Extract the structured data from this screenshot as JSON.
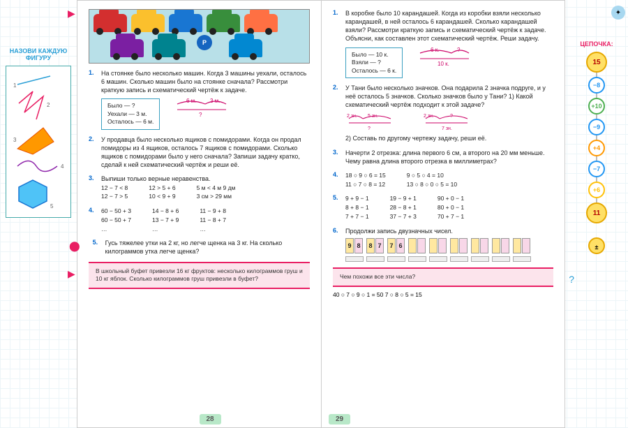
{
  "left_sidebar": {
    "title": "НАЗОВИ КАЖДУЮ ФИГУРУ",
    "shape_labels": [
      "1",
      "2",
      "3",
      "4",
      "5"
    ],
    "shape_colors": {
      "line": "#2a9fd6",
      "zigzag": "#e91e63",
      "poly": "#ff9800",
      "wave": "#8e24aa",
      "hex_fill": "#4fc3f7",
      "hex_stroke": "#1976d2"
    }
  },
  "page_left": {
    "number": "28",
    "car_colors": [
      "#d32f2f",
      "#1976d2",
      "#fbc02d",
      "#7b1fa2",
      "#388e3c",
      "#ff7043",
      "#00838f",
      "#5d4037",
      "#0288d1"
    ],
    "task1": {
      "text": "На стоянке было несколько машин. Когда 3 машины уехали, осталось 6 машин. Сколько машин было на стоянке сначала?\nРассмотри краткую запись и схематический чертёж к задаче.",
      "box": [
        "Было — ?",
        "Уехали — 3 м.",
        "Осталось — 6 м."
      ],
      "diag": {
        "a": "6 м.",
        "b": "3 м.",
        "c": "?",
        "color": "#cc0066"
      }
    },
    "task2": "У продавца было несколько ящиков с помидорами. Когда он продал помидоры из 4 ящиков, осталось 7 ящиков с помидорами. Сколько ящиков с помидорами было у него сначала? Запиши задачу кратко, сделай к ней схематический чертёж и реши её.",
    "task3": {
      "text": "Выпиши только верные неравенства.",
      "cols": [
        [
          "12 − 7 < 8",
          "12 − 7 > 5"
        ],
        [
          "12 > 5 + 6",
          "10 < 9 + 9"
        ],
        [
          "5 м < 4 м 9 дм",
          "3 см > 29 мм"
        ]
      ]
    },
    "task4": {
      "cols": [
        [
          "60 − 50 + 3",
          "60 − 50 + 7",
          "…"
        ],
        [
          "14 − 8 + 6",
          "13 − 7 + 9",
          "…"
        ],
        [
          "11 − 9 + 8",
          "11 − 8 + 7",
          "…"
        ]
      ]
    },
    "task5": "Гусь тяжелее утки на 2 кг, но легче щенка на 3 кг. На сколько килограммов утка легче щенка?",
    "pink": "В школьный буфет привезли 16 кг фруктов: несколько килограммов груш и 10 кг яблок. Сколько килограммов груш привезли в буфет?"
  },
  "page_right": {
    "number": "29",
    "task1": {
      "text": "В коробке было 10 карандашей. Когда из коробки взяли несколько карандашей, в ней осталось 6 карандашей. Сколько карандашей взяли? Рассмотри краткую запись и схематический чертёж к задаче. Объясни, как составлен этот схематический чертёж. Реши задачу.",
      "box": [
        "Было — 10 к.",
        "Взяли — ?",
        "Осталось — 6 к."
      ],
      "diag": {
        "a": "6 к.",
        "b": "?",
        "c": "10 к.",
        "color": "#cc0066"
      }
    },
    "task2": {
      "text": "У Тани было несколько значков. Она подарила 2 значка подруге, и у неё осталось 5 значков. Сколько значков было у Тани?\n1) Какой схематический чертёж подходит к этой задаче?",
      "d1": {
        "a": "2 зн.",
        "b": "5 зн.",
        "c": "?"
      },
      "d2": {
        "a": "2 зн.",
        "b": "?",
        "c": "7 зн."
      },
      "sub": "2) Составь по другому чертежу задачу, реши её."
    },
    "task3": "Начерти 2 отрезка: длина первого 6 см, а второго на 20 мм меньше. Чему равна длина второго отрезка в миллиметрах?",
    "task4": {
      "cols": [
        [
          "18 ○ 9 ○ 6 = 15",
          "11 ○ 7 ○ 8 = 12"
        ],
        [
          "9 ○ 5 ○ 4 = 10",
          "13 ○ 8 ○ 0 ○ 5 = 10"
        ]
      ]
    },
    "task5": {
      "cols": [
        [
          "9 + 9 − 1",
          "8 + 8 − 1",
          "7 + 7 − 1"
        ],
        [
          "19 − 9 + 1",
          "28 − 8 + 1",
          "37 − 7 + 3"
        ],
        [
          "90 + 0 − 1",
          "80 + 0 − 1",
          "70 + 7 − 1"
        ]
      ]
    },
    "task6": {
      "text": "Продолжи запись двузначных чисел.",
      "pairs": [
        [
          "9",
          "8"
        ],
        [
          "8",
          "7"
        ],
        [
          "7",
          "6"
        ],
        [
          "",
          ""
        ],
        [
          "",
          ""
        ],
        [
          "",
          ""
        ],
        [
          "",
          ""
        ],
        [
          "",
          ""
        ],
        [
          "",
          ""
        ]
      ]
    },
    "pink_q": "Чем похожи все эти числа?",
    "bottom": "40 ○ 7 ○ 9 ○ 1 = 50          7 ○ 8 ○ 5 = 15"
  },
  "right_sidebar": {
    "title": "ЦЕПОЧКА:",
    "chain": [
      {
        "v": "15",
        "big": true
      },
      {
        "v": "−8",
        "c": "#2196f3"
      },
      {
        "v": "+10",
        "c": "#4caf50"
      },
      {
        "v": "−9",
        "c": "#2196f3"
      },
      {
        "v": "+4",
        "c": "#ff9800"
      },
      {
        "v": "−7",
        "c": "#2196f3"
      },
      {
        "v": "+6",
        "c": "#ffc107"
      },
      {
        "v": "11",
        "big": true
      }
    ],
    "icons": [
      "±",
      "±"
    ]
  }
}
